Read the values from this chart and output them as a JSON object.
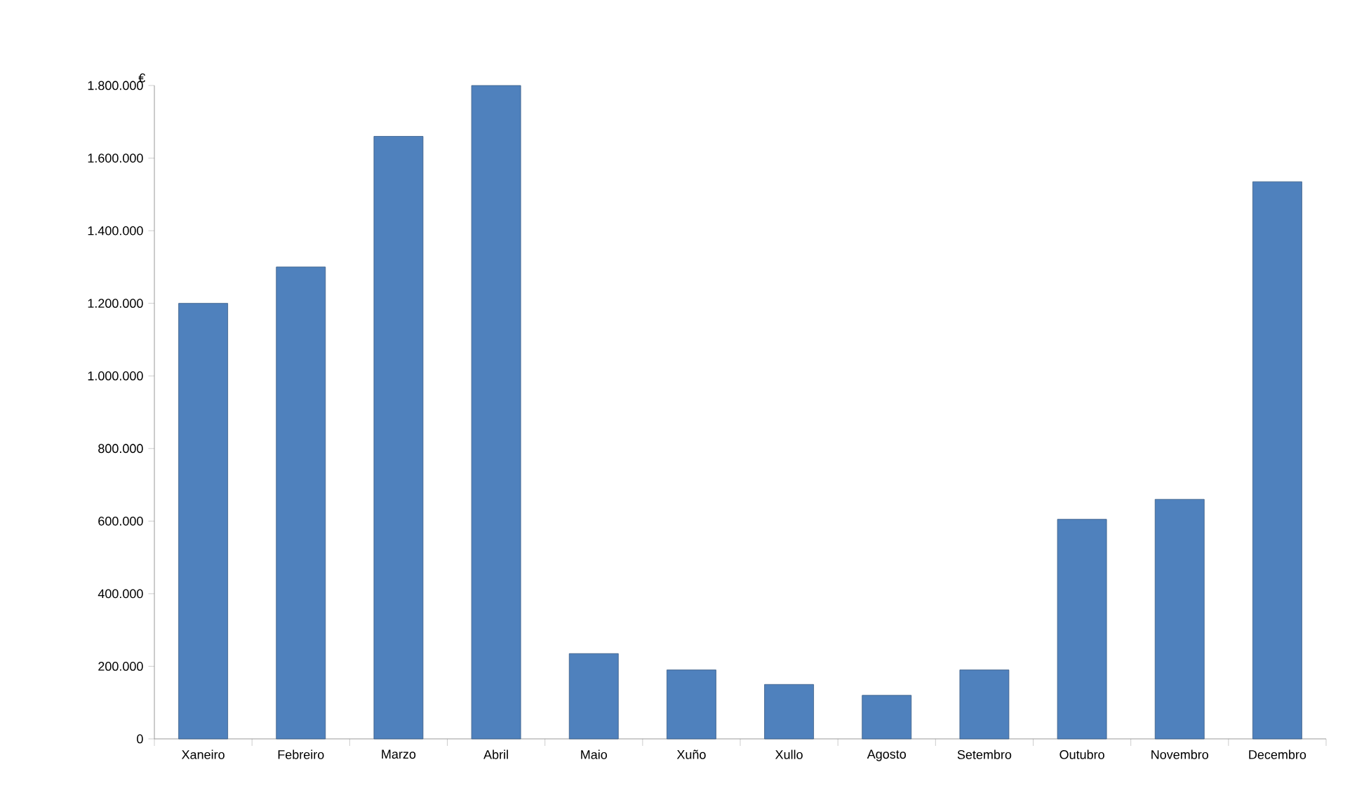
{
  "chart_data": {
    "type": "bar",
    "ylabel": "€",
    "categories": [
      "Xaneiro",
      "Febreiro",
      "Marzo",
      "Abril",
      "Maio",
      "Xuño",
      "Xullo",
      "Agosto",
      "Setembro",
      "Outubro",
      "Novembro",
      "Decembro"
    ],
    "values": [
      1200000,
      1300000,
      1660000,
      1800000,
      235000,
      190000,
      150000,
      120000,
      190000,
      605000,
      660000,
      1535000
    ],
    "color": "#4f81bd",
    "ylim": [
      0,
      1800000
    ],
    "yticks": [
      0,
      {
        "value": 200000,
        "label": "200.000"
      },
      {
        "value": 400000,
        "label": "400.000"
      },
      {
        "value": 600000,
        "label": "600.000"
      },
      {
        "value": 800000,
        "label": "800.000"
      },
      {
        "value": 1000000,
        "label": "1.000.000"
      },
      {
        "value": 1200000,
        "label": "1.200.000"
      },
      {
        "value": 1400000,
        "label": "1.400.000"
      },
      {
        "value": 1600000,
        "label": "1.600.000"
      },
      {
        "value": 1800000,
        "label": "1.800.000"
      }
    ]
  }
}
